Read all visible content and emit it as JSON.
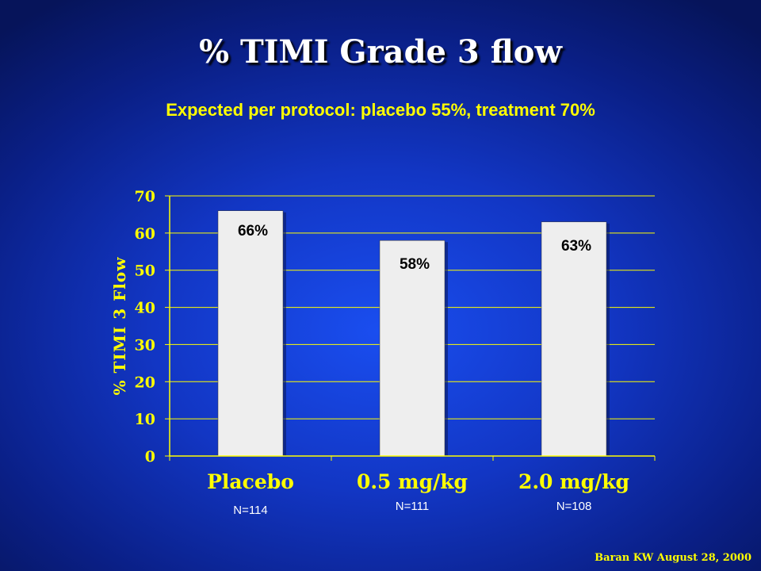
{
  "chart_data": {
    "type": "bar",
    "title": "% TIMI Grade 3 flow",
    "subtitle": "Expected per protocol: placebo 55%, treatment 70%",
    "categories": [
      "Placebo",
      "0.5 mg/kg",
      "2.0 mg/kg"
    ],
    "values": [
      66,
      58,
      63
    ],
    "data_labels": [
      "66%",
      "58%",
      "63%"
    ],
    "sample_sizes": [
      "N=114",
      "N=111",
      "N=108"
    ],
    "xlabel": "",
    "ylabel": "% TIMI 3 Flow",
    "ylim": [
      0,
      70
    ],
    "yticks": [
      "0",
      "10",
      "20",
      "30",
      "40",
      "50",
      "60",
      "70"
    ],
    "grid": true,
    "bar_color": "#eeeeee",
    "axis_color": "#ffff00"
  },
  "citation": "Baran KW August 28, 2000"
}
